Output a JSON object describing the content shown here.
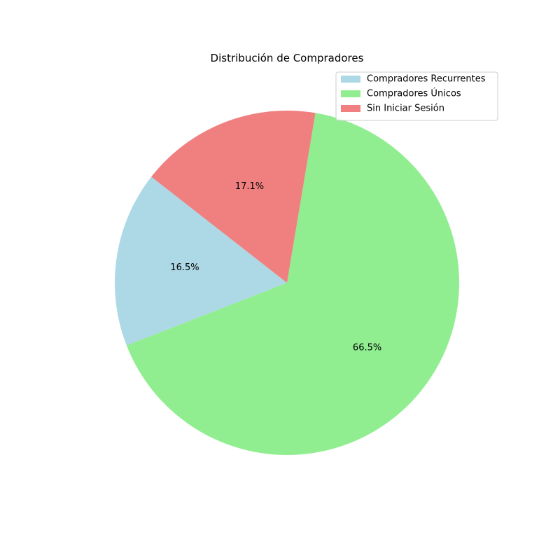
{
  "chart_data": {
    "type": "pie",
    "title": "Distribución de Compradores",
    "autopct_format": "%.1f%%",
    "start_angle_deg": 142,
    "direction": "counterclockwise",
    "legend_position": "upper right",
    "slices": [
      {
        "label": "Compradores Recurrentes",
        "value": 16.5,
        "pct_label": "16.5%",
        "color": "#add8e6"
      },
      {
        "label": "Compradores Únicos",
        "value": 66.5,
        "pct_label": "66.5%",
        "color": "#90ee90"
      },
      {
        "label": "Sin Iniciar Sesión",
        "value": 17.1,
        "pct_label": "17.1%",
        "color": "#f08080"
      }
    ]
  }
}
